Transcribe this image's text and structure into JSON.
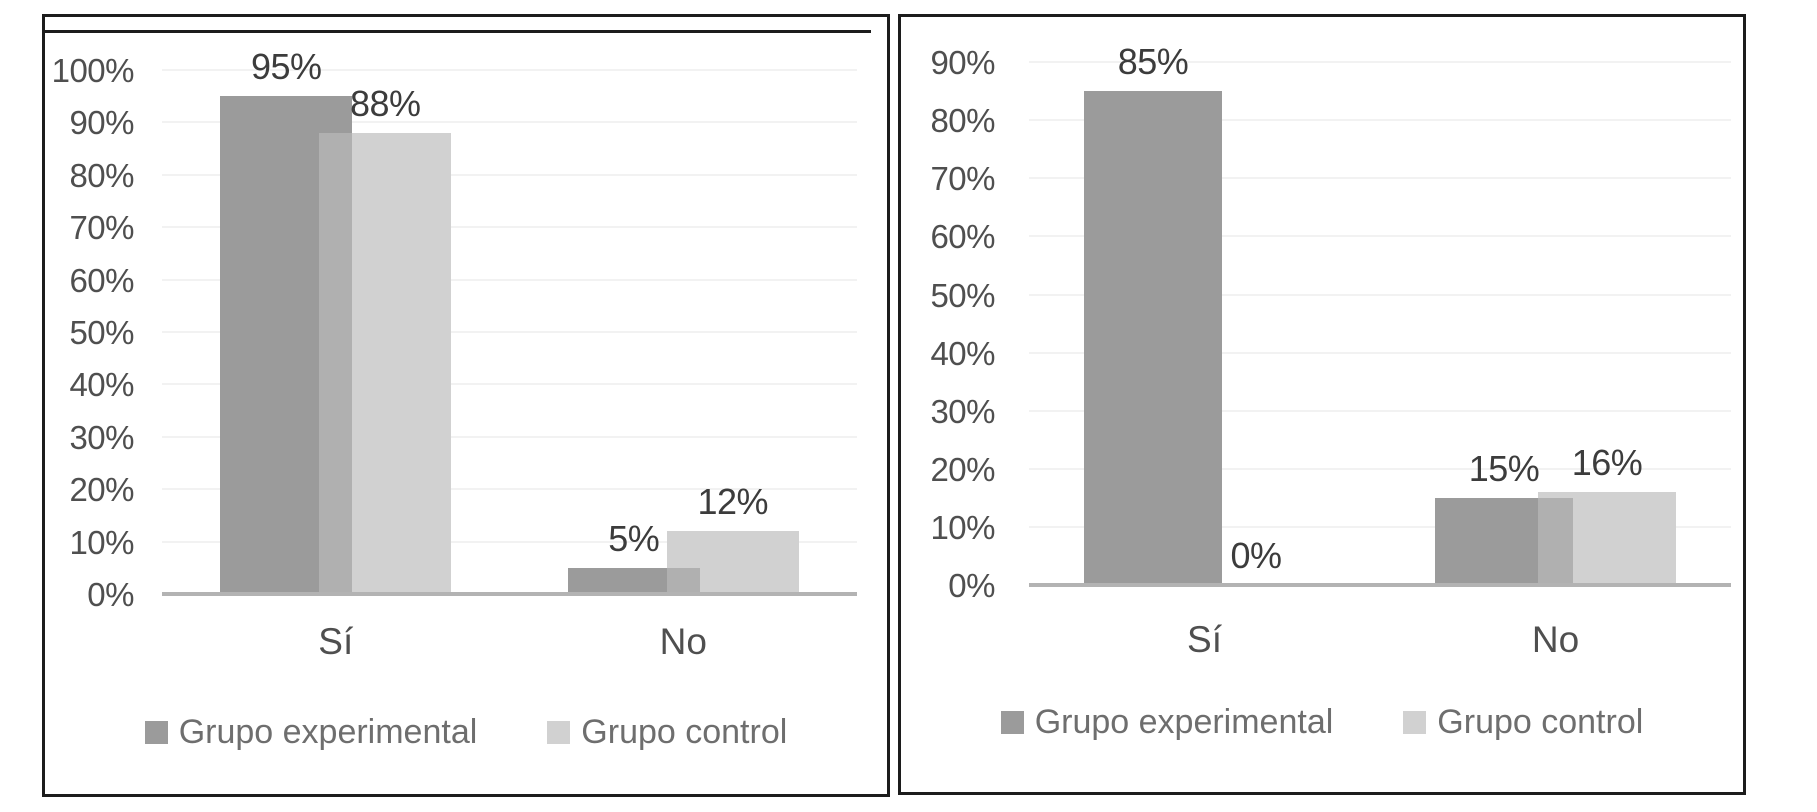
{
  "figure": {
    "description": "Two grouped bar charts comparing survey answers of experimental and control groups"
  },
  "chart_data": [
    {
      "type": "bar",
      "title": "",
      "categories": [
        "Sí",
        "No"
      ],
      "series": [
        {
          "name": "Grupo experimental",
          "values": [
            95,
            5
          ],
          "data_labels": [
            "95%",
            "5%"
          ]
        },
        {
          "name": "Grupo control",
          "values": [
            88,
            12
          ],
          "data_labels": [
            "88%",
            "12%"
          ]
        }
      ],
      "y_ticks": [
        "0%",
        "10%",
        "20%",
        "30%",
        "40%",
        "50%",
        "60%",
        "70%",
        "80%",
        "90%",
        "100%"
      ],
      "ylim": [
        0,
        100
      ],
      "xlabel": "",
      "ylabel": "",
      "grid": "horizontal",
      "legend_position": "bottom"
    },
    {
      "type": "bar",
      "title": "",
      "categories": [
        "Sí",
        "No"
      ],
      "series": [
        {
          "name": "Grupo experimental",
          "values": [
            85,
            15
          ],
          "data_labels": [
            "85%",
            "15%"
          ]
        },
        {
          "name": "Grupo control",
          "values": [
            0,
            16
          ],
          "data_labels": [
            "0%",
            "16%"
          ]
        }
      ],
      "y_ticks": [
        "0%",
        "10%",
        "20%",
        "30%",
        "40%",
        "50%",
        "60%",
        "70%",
        "80%",
        "90%"
      ],
      "ylim": [
        0,
        90
      ],
      "xlabel": "",
      "ylabel": "",
      "grid": "horizontal",
      "legend_position": "bottom"
    }
  ],
  "colors": {
    "experimental": "#9b9b9b",
    "control": "#d1d1d1",
    "overlap": "#b0b0b0",
    "axis_line": "#b3b3b3",
    "gridline": "#f2f2f2",
    "panel_border": "#1c1c1c",
    "tick_text": "#4f4f4f",
    "data_label_text": "#3c3c3c",
    "category_text": "#4f4f4f",
    "legend_text": "#6e6e6e"
  }
}
